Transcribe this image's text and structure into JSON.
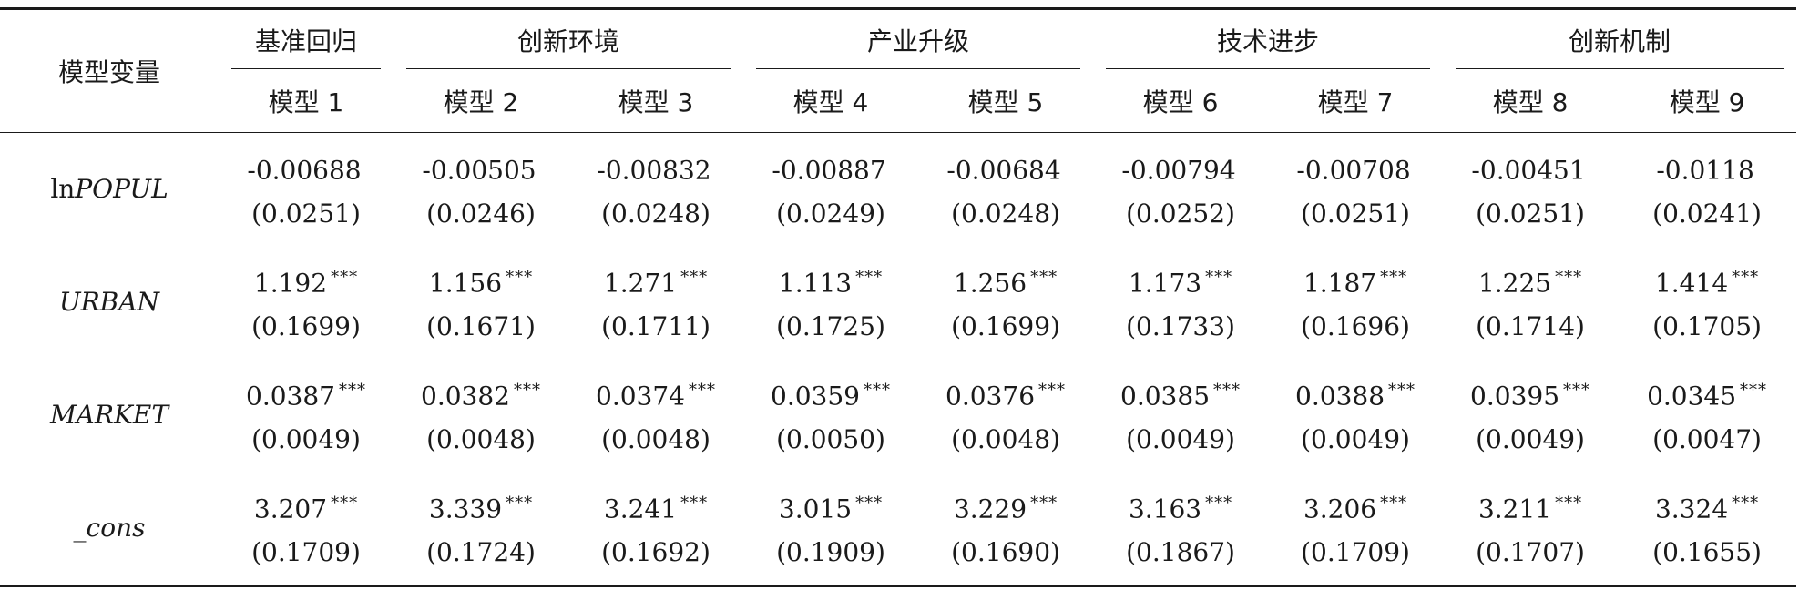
{
  "table": {
    "stub_header": "模型变量",
    "groups": [
      {
        "label": "基准回归",
        "models": [
          "模型 1"
        ]
      },
      {
        "label": "创新环境",
        "models": [
          "模型 2",
          "模型 3"
        ]
      },
      {
        "label": "产业升级",
        "models": [
          "模型 4",
          "模型 5"
        ]
      },
      {
        "label": "技术进步",
        "models": [
          "模型 6",
          "模型 7"
        ]
      },
      {
        "label": "创新机制",
        "models": [
          "模型 8",
          "模型 9"
        ]
      }
    ],
    "rows": [
      {
        "var_prefix": "ln",
        "var_italic": "POPUL",
        "coef": [
          "-0.00688",
          "-0.00505",
          "-0.00832",
          "-0.00887",
          "-0.00684",
          "-0.00794",
          "-0.00708",
          "-0.00451",
          "-0.0118"
        ],
        "stars": [
          "",
          "",
          "",
          "",
          "",
          "",
          "",
          "",
          ""
        ],
        "se": [
          "(0.0251)",
          "(0.0246)",
          "(0.0248)",
          "(0.0249)",
          "(0.0248)",
          "(0.0252)",
          "(0.0251)",
          "(0.0251)",
          "(0.0241)"
        ]
      },
      {
        "var_prefix": "",
        "var_italic": "URBAN",
        "coef": [
          "1.192",
          "1.156",
          "1.271",
          "1.113",
          "1.256",
          "1.173",
          "1.187",
          "1.225",
          "1.414"
        ],
        "stars": [
          "***",
          "***",
          "***",
          "***",
          "***",
          "***",
          "***",
          "***",
          "***"
        ],
        "se": [
          "(0.1699)",
          "(0.1671)",
          "(0.1711)",
          "(0.1725)",
          "(0.1699)",
          "(0.1733)",
          "(0.1696)",
          "(0.1714)",
          "(0.1705)"
        ]
      },
      {
        "var_prefix": "",
        "var_italic": "MARKET",
        "coef": [
          "0.0387",
          "0.0382",
          "0.0374",
          "0.0359",
          "0.0376",
          "0.0385",
          "0.0388",
          "0.0395",
          "0.0345"
        ],
        "stars": [
          "***",
          "***",
          "***",
          "***",
          "***",
          "***",
          "***",
          "***",
          "***"
        ],
        "se": [
          "(0.0049)",
          "(0.0048)",
          "(0.0048)",
          "(0.0050)",
          "(0.0048)",
          "(0.0049)",
          "(0.0049)",
          "(0.0049)",
          "(0.0047)"
        ]
      },
      {
        "var_prefix": "",
        "var_italic": "_cons",
        "coef": [
          "3.207",
          "3.339",
          "3.241",
          "3.015",
          "3.229",
          "3.163",
          "3.206",
          "3.211",
          "3.324"
        ],
        "stars": [
          "***",
          "***",
          "***",
          "***",
          "***",
          "***",
          "***",
          "***",
          "***"
        ],
        "se": [
          "(0.1709)",
          "(0.1724)",
          "(0.1692)",
          "(0.1909)",
          "(0.1690)",
          "(0.1867)",
          "(0.1709)",
          "(0.1707)",
          "(0.1655)"
        ]
      }
    ]
  }
}
